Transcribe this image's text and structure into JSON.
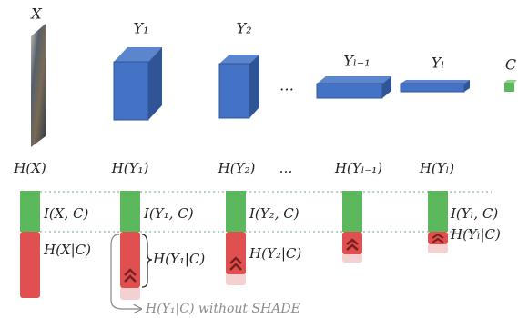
{
  "layers": [
    {
      "label": "X",
      "entropy": "H(X)"
    },
    {
      "label": "Y₁",
      "entropy": "H(Y₁)"
    },
    {
      "label": "Y₂",
      "entropy": "H(Y₂)"
    },
    {
      "label": "…",
      "entropy": "…"
    },
    {
      "label": "Yₗ₋₁",
      "entropy": "H(Yₗ₋₁)"
    },
    {
      "label": "Yₗ",
      "entropy": "H(Yₗ)"
    },
    {
      "label": "C"
    }
  ],
  "bars": [
    {
      "mutual": "I(X, C)",
      "conditional": "H(X|C)"
    },
    {
      "mutual": "I(Y₁, C)",
      "conditional": "H(Y₁|C)"
    },
    {
      "mutual": "I(Y₂, C)",
      "conditional": "H(Y₂|C)"
    },
    {
      "mutual": "I(Yₗ, C)",
      "conditional": "H(Yₗ|C)"
    }
  ],
  "annotation": "H(Y₁|C) without SHADE"
}
